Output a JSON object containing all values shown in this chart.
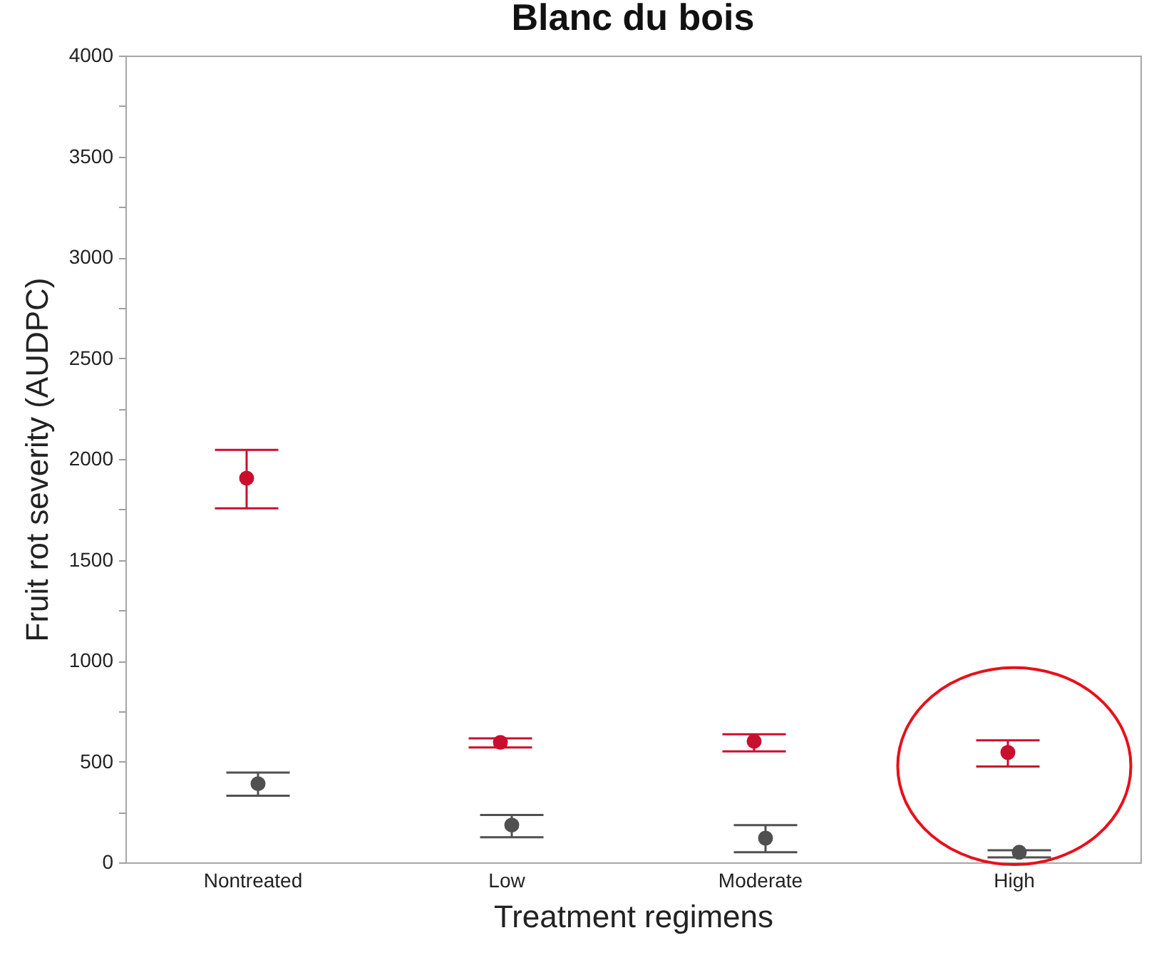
{
  "chart_data": {
    "type": "scatter",
    "title": "Blanc du bois",
    "xlabel": "Treatment regimens",
    "ylabel": "Fruit rot severity (AUDPC)",
    "categories": [
      "Nontreated",
      "Low",
      "Moderate",
      "High"
    ],
    "series": [
      {
        "color": "#c8102e",
        "values": [
          1905,
          595,
          600,
          545
        ],
        "errors": [
          [
            1755,
            2045
          ],
          [
            570,
            615
          ],
          [
            550,
            635
          ],
          [
            475,
            605
          ]
        ]
      },
      {
        "color": "#505050",
        "values": [
          390,
          185,
          120,
          50
        ],
        "errors": [
          [
            330,
            445
          ],
          [
            125,
            235
          ],
          [
            50,
            185
          ],
          [
            25,
            60
          ]
        ]
      }
    ],
    "ylim": [
      0,
      4000
    ],
    "yticks": [
      0,
      {
        "value": 250,
        "label": null
      },
      500,
      {
        "value": 750,
        "label": null
      },
      1000,
      {
        "value": 1250,
        "label": null
      },
      1500,
      {
        "value": 1750,
        "label": null
      },
      2000,
      {
        "value": 2250,
        "label": null
      },
      2500,
      {
        "value": 2750,
        "label": null
      },
      3000,
      {
        "value": 3250,
        "label": null
      },
      3500,
      {
        "value": 3750,
        "label": null
      },
      4000
    ],
    "marker": "circle"
  }
}
